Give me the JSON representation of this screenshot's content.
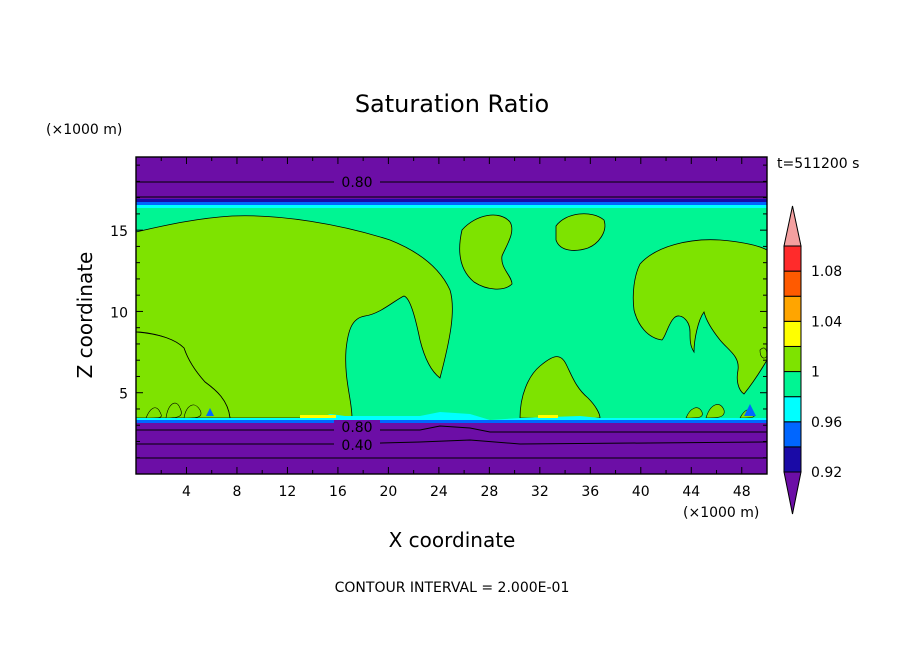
{
  "chart_data": {
    "type": "heatmap",
    "title": "Saturation Ratio",
    "xlabel": "X coordinate",
    "ylabel": "Z coordinate",
    "x_unit": "(×1000 m)",
    "y_unit": "(×1000 m)",
    "time_label": "t=511200 s",
    "footer": "CONTOUR INTERVAL = 2.000E-01",
    "xlim": [
      0,
      50
    ],
    "ylim": [
      0,
      19.5
    ],
    "x_ticks": [
      4,
      8,
      12,
      16,
      20,
      24,
      28,
      32,
      36,
      40,
      44,
      48
    ],
    "y_ticks": [
      5,
      10,
      15
    ],
    "contour_labels": [
      {
        "text": "0.80",
        "x": 18.0,
        "z": 17.8
      },
      {
        "text": "0.80",
        "x": 18.0,
        "z": 3.0
      },
      {
        "text": "0.40",
        "x": 18.0,
        "z": 1.8
      }
    ],
    "colorbar": {
      "labels": [
        "1.08",
        "1.04",
        "1",
        "0.96",
        "0.92"
      ],
      "levels": [
        {
          "color": "#6c0ea6"
        },
        {
          "color": "#1a0aa6"
        },
        {
          "color": "#0066ff"
        },
        {
          "color": "#00ffff"
        },
        {
          "color": "#00f593"
        },
        {
          "color": "#7ee300"
        },
        {
          "color": "#ffff00"
        },
        {
          "color": "#ffa500"
        },
        {
          "color": "#ff5a00"
        },
        {
          "color": "#ff2b2b"
        },
        {
          "color": "#f4a0a0"
        }
      ]
    }
  }
}
